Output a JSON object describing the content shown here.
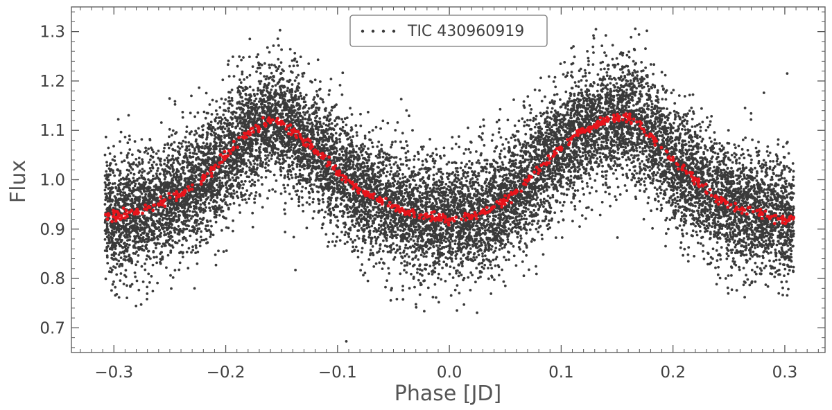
{
  "chart_data": {
    "type": "scatter",
    "xlabel": "Phase [JD]",
    "ylabel": "Flux",
    "xlim": [
      -0.338,
      0.336
    ],
    "ylim": [
      0.65,
      1.35
    ],
    "x_ticks": [
      -0.3,
      -0.2,
      -0.1,
      0.0,
      0.1,
      0.2,
      0.3
    ],
    "x_tick_labels": [
      "−0.3",
      "−0.2",
      "−0.1",
      "0.0",
      "0.1",
      "0.2",
      "0.3"
    ],
    "y_ticks": [
      0.7,
      0.8,
      0.9,
      1.0,
      1.1,
      1.2,
      1.3
    ],
    "y_tick_labels": [
      "0.7",
      "0.8",
      "0.9",
      "1.0",
      "1.1",
      "1.2",
      "1.3"
    ],
    "grid": false,
    "legend": {
      "entries": [
        "TIC 430960919"
      ],
      "placement": "top-center"
    },
    "series": [
      {
        "name": "TIC 430960919",
        "marker_color": "#3a3a3a",
        "phase_range": [
          -0.308,
          0.308
        ],
        "noise_sigma": 0.06,
        "point_count": 14000,
        "note": "dense raw photometry scattered around the binned curve"
      },
      {
        "name": "binned",
        "marker_color": "#e8141b",
        "x": [
          -0.3,
          -0.28,
          -0.26,
          -0.24,
          -0.22,
          -0.2,
          -0.18,
          -0.16,
          -0.14,
          -0.12,
          -0.1,
          -0.08,
          -0.06,
          -0.04,
          -0.02,
          0.0,
          0.02,
          0.04,
          0.06,
          0.08,
          0.1,
          0.12,
          0.14,
          0.16,
          0.18,
          0.2,
          0.22,
          0.24,
          0.26,
          0.28,
          0.3
        ],
        "y": [
          0.925,
          0.935,
          0.95,
          0.97,
          1.0,
          1.045,
          1.095,
          1.12,
          1.1,
          1.06,
          1.015,
          0.98,
          0.955,
          0.935,
          0.925,
          0.92,
          0.925,
          0.945,
          0.975,
          1.02,
          1.065,
          1.1,
          1.12,
          1.125,
          1.09,
          1.04,
          1.0,
          0.96,
          0.94,
          0.93,
          0.92
        ]
      }
    ]
  },
  "colors": {
    "axes": "#555555",
    "raw_points": "#3a3a3a",
    "binned_points": "#e8141b"
  }
}
